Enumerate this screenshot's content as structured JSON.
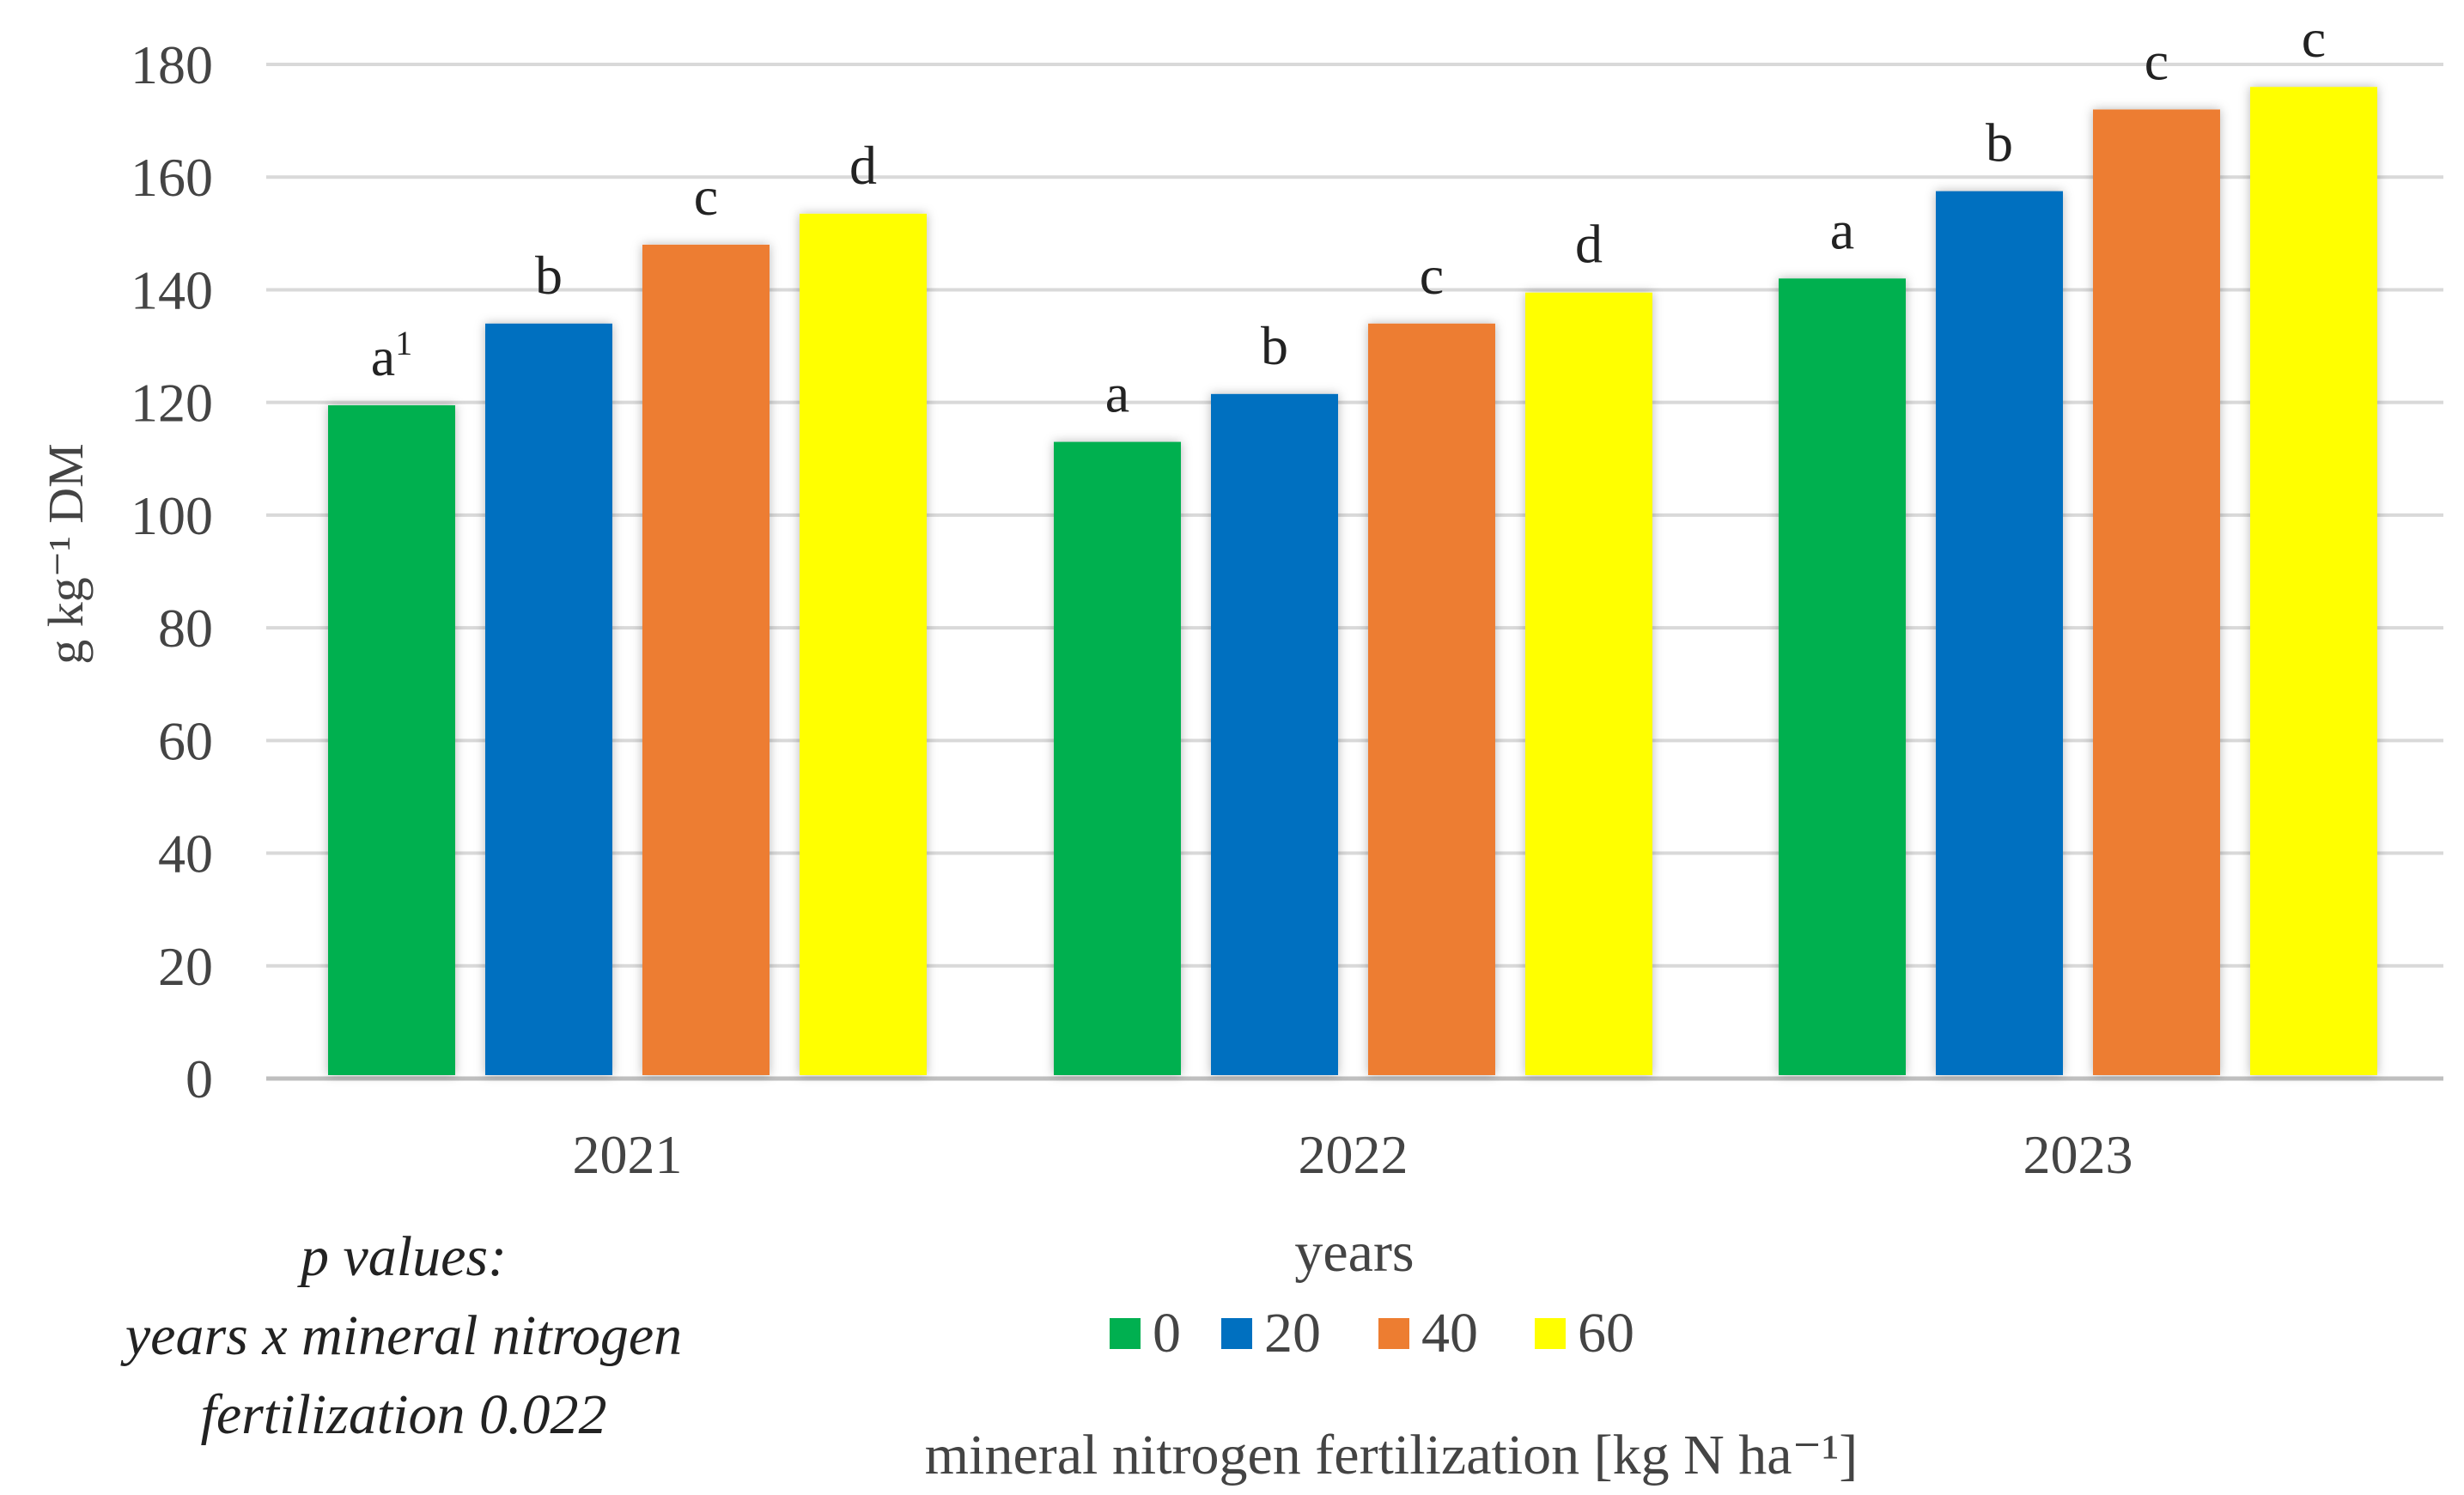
{
  "chart_data": {
    "type": "bar",
    "categories": [
      "2021",
      "2022",
      "2023"
    ],
    "series": [
      {
        "name": "0",
        "color": "#00B050",
        "values": [
          119.5,
          113,
          142
        ],
        "labels": [
          "a",
          "a",
          "a"
        ]
      },
      {
        "name": "20",
        "color": "#0070C0",
        "values": [
          134,
          121.5,
          157.5
        ],
        "labels": [
          "b",
          "b",
          "b"
        ]
      },
      {
        "name": "40",
        "color": "#ED7D31",
        "values": [
          148,
          134,
          172
        ],
        "labels": [
          "c",
          "c",
          "c"
        ]
      },
      {
        "name": "60",
        "color": "#FFFF00",
        "values": [
          153.5,
          139.5,
          176
        ],
        "labels": [
          "d",
          "d",
          "c"
        ]
      }
    ],
    "first_label_superscript": "1",
    "xlabel": "years",
    "ylabel": "g kg⁻¹ DM",
    "legend_title": "mineral nitrogen fertilization [kg N ha⁻¹]",
    "ylim": [
      0,
      180
    ],
    "ytick_step": 20,
    "grid": true,
    "legend_position": "bottom-center"
  },
  "note": {
    "line1": "p values:",
    "line2": "years x mineral nitrogen",
    "line3": "fertilization 0.022"
  }
}
